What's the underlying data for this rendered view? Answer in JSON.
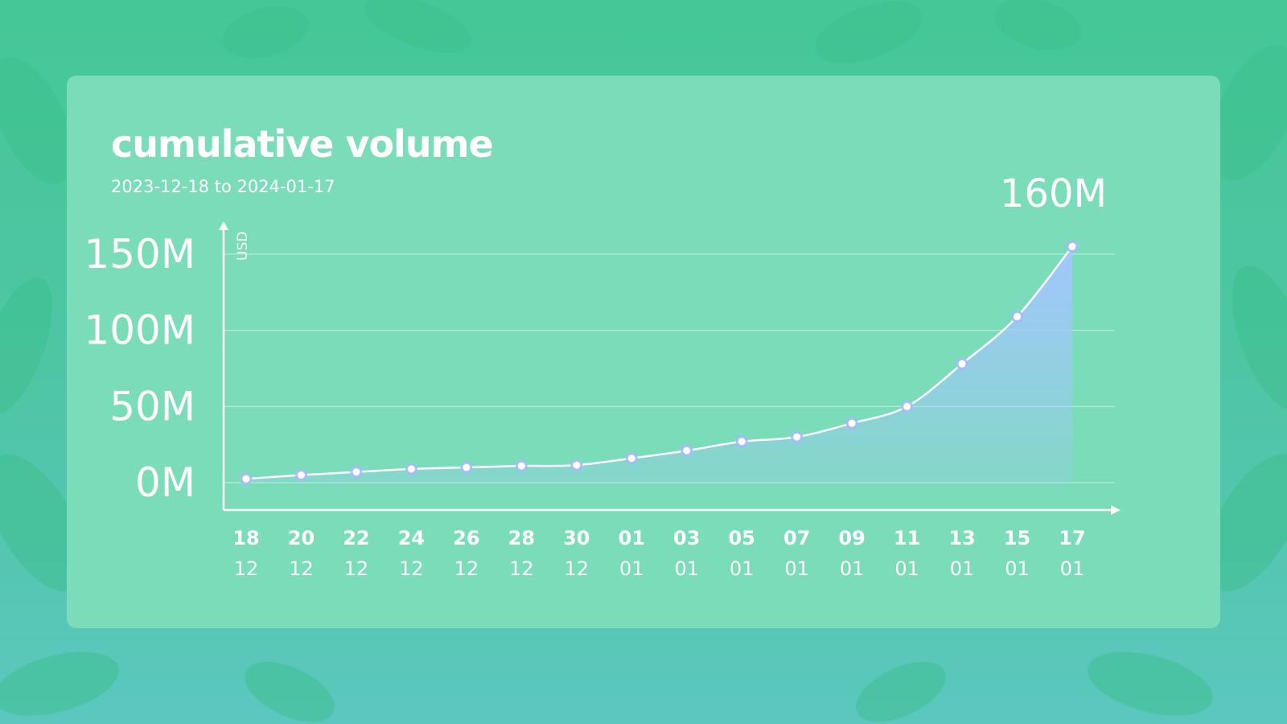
{
  "chart_data": {
    "type": "area",
    "title": "cumulative volume",
    "subtitle": "2023-12-18 to 2024-01-17",
    "latest_value_label": "160M",
    "ylabel": "USD",
    "y_ticks": [
      "0M",
      "50M",
      "100M",
      "150M"
    ],
    "ylim": [
      0,
      160
    ],
    "x_tick_days": [
      "18",
      "20",
      "22",
      "24",
      "26",
      "28",
      "30",
      "01",
      "03",
      "05",
      "07",
      "09",
      "11",
      "13",
      "15",
      "17"
    ],
    "x_tick_months": [
      "12",
      "12",
      "12",
      "12",
      "12",
      "12",
      "12",
      "01",
      "01",
      "01",
      "01",
      "01",
      "01",
      "01",
      "01",
      "01"
    ],
    "x": [
      "2023-12-18",
      "2023-12-20",
      "2023-12-22",
      "2023-12-24",
      "2023-12-26",
      "2023-12-28",
      "2023-12-30",
      "2024-01-01",
      "2024-01-03",
      "2024-01-05",
      "2024-01-07",
      "2024-01-09",
      "2024-01-11",
      "2024-01-13",
      "2024-01-15",
      "2024-01-17"
    ],
    "series": [
      {
        "values": [
          2.5,
          5,
          7,
          9,
          10,
          11,
          11.5,
          16,
          21,
          27,
          30,
          39,
          50,
          78,
          109,
          155
        ]
      }
    ],
    "grid": true,
    "colors": {
      "line": "#ffffff",
      "area_top": "#a3c6ff",
      "marker_ring": "#a9b8ff",
      "background": "#7bdcba"
    }
  }
}
